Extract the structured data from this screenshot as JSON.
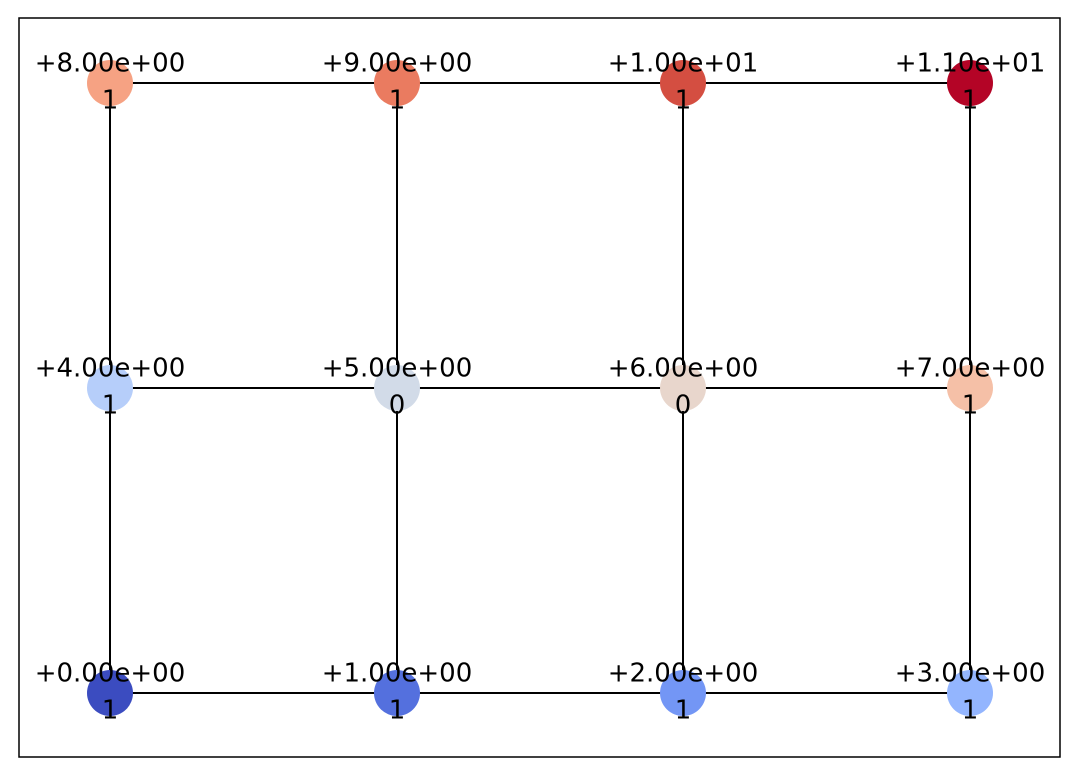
{
  "nodes": [
    {
      "label": "+0.00e+00",
      "sublabel": "1",
      "color": "#3b4cc0"
    },
    {
      "label": "+1.00e+00",
      "sublabel": "1",
      "color": "#5470de"
    },
    {
      "label": "+2.00e+00",
      "sublabel": "1",
      "color": "#7396f5"
    },
    {
      "label": "+3.00e+00",
      "sublabel": "1",
      "color": "#93b5fe"
    },
    {
      "label": "+4.00e+00",
      "sublabel": "1",
      "color": "#b6cefa"
    },
    {
      "label": "+5.00e+00",
      "sublabel": "0",
      "color": "#d2dbe8"
    },
    {
      "label": "+6.00e+00",
      "sublabel": "0",
      "color": "#e8d6cc"
    },
    {
      "label": "+7.00e+00",
      "sublabel": "1",
      "color": "#f5c0a7"
    },
    {
      "label": "+8.00e+00",
      "sublabel": "1",
      "color": "#f6a283"
    },
    {
      "label": "+9.00e+00",
      "sublabel": "1",
      "color": "#ea7b60"
    },
    {
      "label": "+1.00e+01",
      "sublabel": "1",
      "color": "#d44e41"
    },
    {
      "label": "+1.10e+01",
      "sublabel": "1",
      "color": "#b40426"
    }
  ]
}
